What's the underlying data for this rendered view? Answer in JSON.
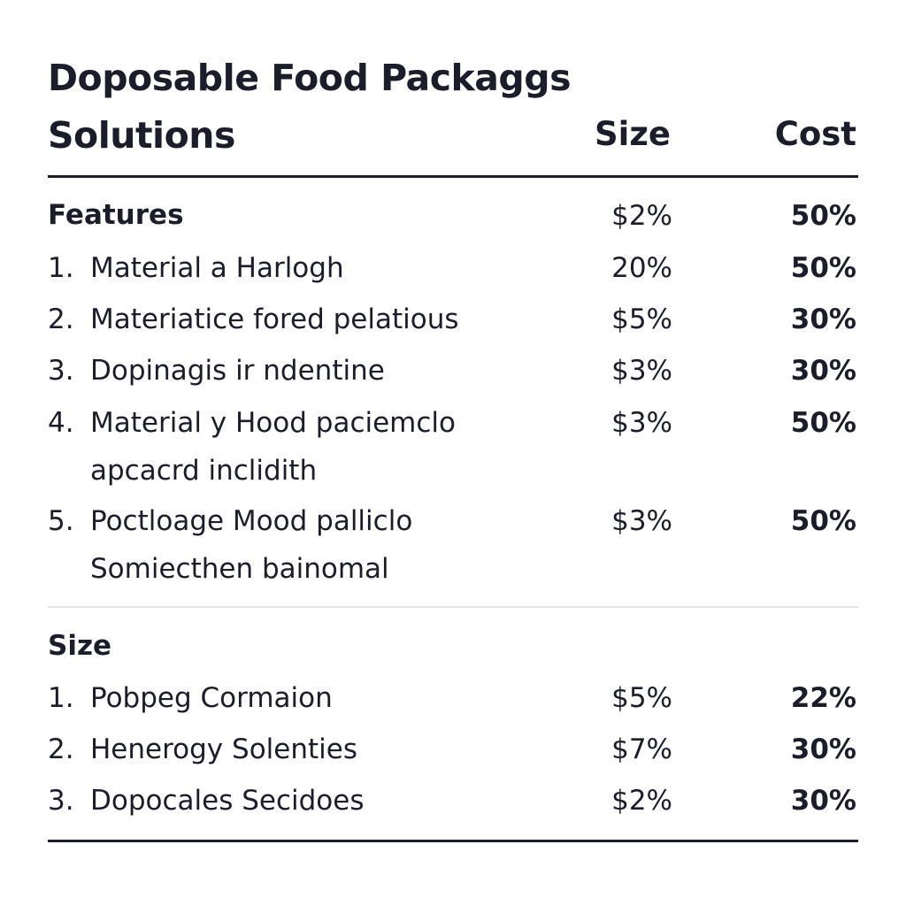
{
  "title": {
    "line1": "Doposable Food Packaggs",
    "line2": "Solutions"
  },
  "columns": {
    "size": "Size",
    "cost": "Cost"
  },
  "sections": [
    {
      "heading": "Features",
      "heading_size": "$2%",
      "heading_cost": "50%",
      "rows": [
        {
          "num": "1.",
          "label": "Material  a Harlogh",
          "size": "20%",
          "cost": "50%"
        },
        {
          "num": "2.",
          "label": "Materiatice fored pelatious",
          "size": "$5%",
          "cost": "30%"
        },
        {
          "num": "3.",
          "label": "Dopinagis ir  ndentine",
          "size": "$3%",
          "cost": "30%"
        },
        {
          "num": "4.",
          "label": "Material y Hood paciemclo apcacrd inclidith",
          "size": "$3%",
          "cost": "50%"
        },
        {
          "num": "5.",
          "label": "Poctloage Mood palliclо Somiecthen bainomal",
          "size": "$3%",
          "cost": "50%"
        }
      ]
    },
    {
      "heading": "Size",
      "rows": [
        {
          "num": "1.",
          "label": "Pobpeg Cormaion",
          "size": "$5%",
          "cost": "22%"
        },
        {
          "num": "2.",
          "label": "Henerogy Solenties",
          "size": "$7%",
          "cost": "30%"
        },
        {
          "num": "3.",
          "label": "Dopocales Secidoes",
          "size": "$2%",
          "cost": "30%"
        }
      ]
    }
  ]
}
